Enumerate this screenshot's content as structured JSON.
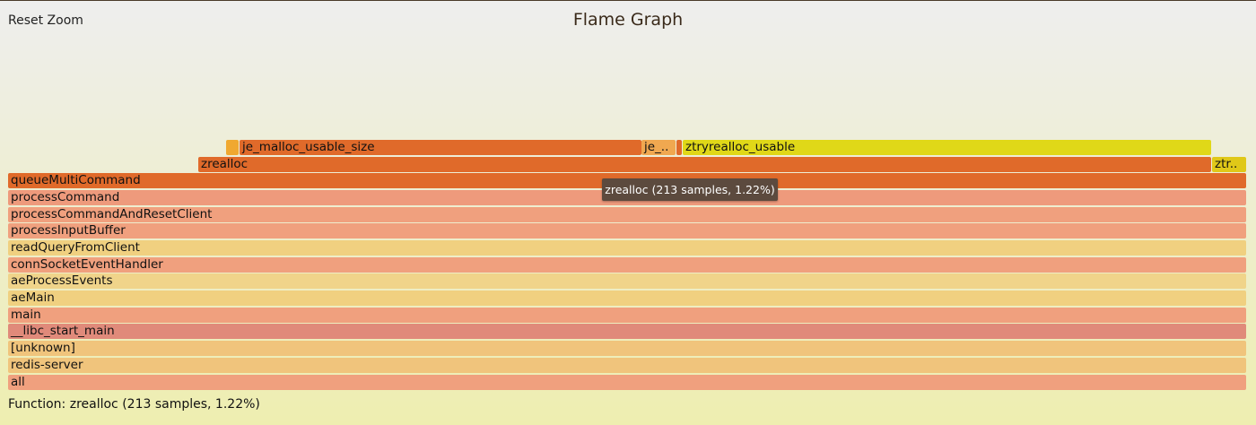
{
  "header": {
    "reset_zoom_label": "Reset Zoom",
    "title": "Flame Graph"
  },
  "frames": [
    {
      "label": "all",
      "color": "#f0a07e"
    },
    {
      "label": "redis-server",
      "color": "#f0c47c"
    },
    {
      "label": "[unknown]",
      "color": "#f0c47c"
    },
    {
      "label": "__libc_start_main",
      "color": "#e08a7a"
    },
    {
      "label": "main",
      "color": "#f0a07e"
    },
    {
      "label": "aeMain",
      "color": "#f0d080"
    },
    {
      "label": "aeProcessEvents",
      "color": "#f0d48a"
    },
    {
      "label": "connSocketEventHandler",
      "color": "#f0a07e"
    },
    {
      "label": "readQueryFromClient",
      "color": "#f0d080"
    },
    {
      "label": "processInputBuffer",
      "color": "#f0a07e"
    },
    {
      "label": "processCommandAndResetClient",
      "color": "#f0a07e"
    },
    {
      "label": "processCommand",
      "color": "#ee9a7c"
    },
    {
      "label": "queueMultiCommand",
      "color": "#e06a2a"
    },
    {
      "label": "zrealloc",
      "color": "#e06a2a"
    },
    {
      "label": "ztr..",
      "color": "#e0c818"
    },
    {
      "label": "",
      "color": "#f0a830"
    },
    {
      "label": "je_malloc_usable_size",
      "color": "#e06a2a"
    },
    {
      "label": "je_..",
      "color": "#f0a850"
    },
    {
      "label": "",
      "color": "#e06a2a"
    },
    {
      "label": "ztryrealloc_usable",
      "color": "#e0d818"
    }
  ],
  "tooltip": "zrealloc (213 samples, 1.22%)",
  "details": "Function: zrealloc (213 samples, 1.22%)"
}
